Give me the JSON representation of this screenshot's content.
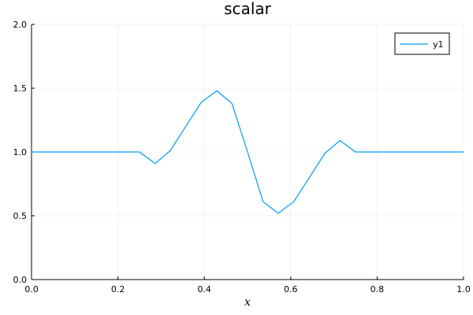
{
  "chart_data": {
    "type": "line",
    "title": "scalar",
    "xlabel": "x",
    "ylabel": "",
    "xlim": [
      0,
      1
    ],
    "ylim": [
      0,
      2
    ],
    "x_ticks": [
      0.0,
      0.2,
      0.4,
      0.6,
      0.8,
      1.0
    ],
    "x_tick_labels": [
      "0.0",
      "0.2",
      "0.4",
      "0.6",
      "0.8",
      "1.0"
    ],
    "y_ticks": [
      0.0,
      0.5,
      1.0,
      1.5,
      2.0
    ],
    "y_tick_labels": [
      "0.0",
      "0.5",
      "1.0",
      "1.5",
      "2.0"
    ],
    "grid": true,
    "legend_position": "top-right",
    "series": [
      {
        "name": "y1",
        "color": "#009AFA",
        "x": [
          0.0,
          0.036,
          0.071,
          0.107,
          0.143,
          0.179,
          0.214,
          0.25,
          0.286,
          0.321,
          0.357,
          0.393,
          0.429,
          0.464,
          0.5,
          0.536,
          0.571,
          0.607,
          0.643,
          0.679,
          0.714,
          0.75,
          0.786,
          0.821,
          0.857,
          0.893,
          0.929,
          0.964,
          1.0
        ],
        "y": [
          1.0,
          1.0,
          1.0,
          1.0,
          1.0,
          1.0,
          1.0,
          1.0,
          0.91,
          1.01,
          1.2,
          1.39,
          1.48,
          1.38,
          1.0,
          0.61,
          0.52,
          0.61,
          0.8,
          0.99,
          1.09,
          1.0,
          1.0,
          1.0,
          1.0,
          1.0,
          1.0,
          1.0,
          1.0
        ]
      }
    ]
  }
}
